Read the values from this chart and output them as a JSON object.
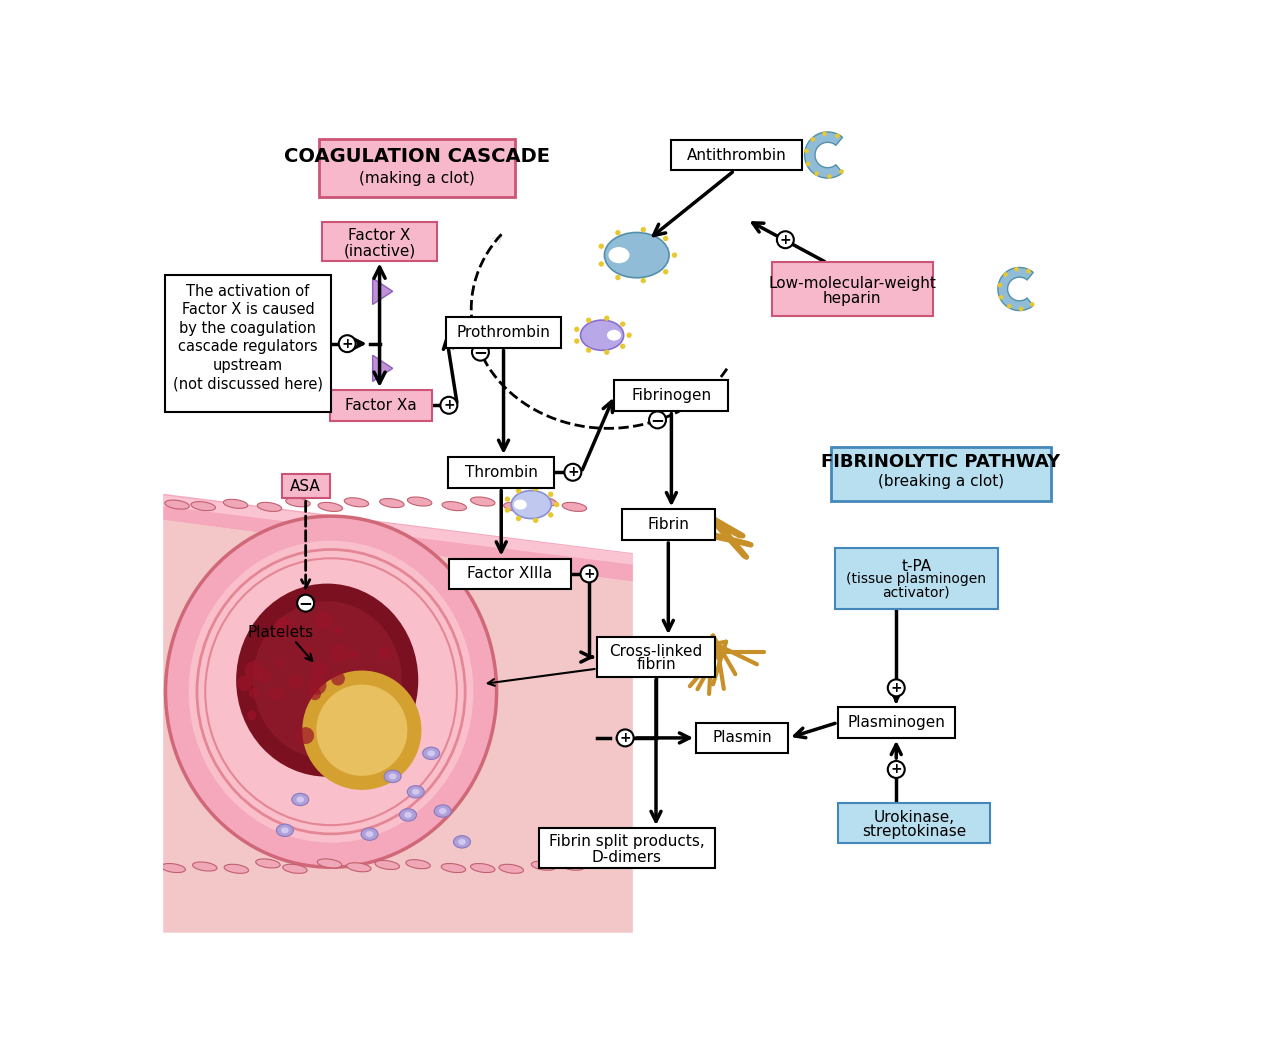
{
  "bg": "#ffffff",
  "pink_face": "#f7b8cc",
  "pink_edge": "#cc5577",
  "blue_face": "#b8dff0",
  "blue_edge": "#4488bb",
  "white_face": "#ffffff",
  "black": "#000000",
  "vessel_outer": "#f0a0b5",
  "vessel_mid": "#f8c5d0",
  "vessel_inner_dark": "#7a1020",
  "vessel_fibrin": "#d4a840",
  "enzyme_blue": "#90bcd8",
  "enzyme_blue_edge": "#5590aa",
  "enzyme_purple": "#b8a8e8",
  "enzyme_purple_edge": "#8870cc",
  "enzyme_lavender": "#c8c0f0",
  "dot_yellow": "#e8c830",
  "tri_purple": "#c090d8",
  "tri_edge": "#9060b8",
  "coag_title": "COAGULATION CASCADE",
  "coag_sub": "(making a clot)",
  "fibrin_pathway_title": "FIBRINOLYTIC PATHWAY",
  "fibrin_pathway_sub": "(breaking a clot)",
  "note_lines": [
    "The activation of",
    "Factor X is caused",
    "by the coagulation",
    "cascade regulators",
    "upstream",
    "(not discussed here)"
  ]
}
